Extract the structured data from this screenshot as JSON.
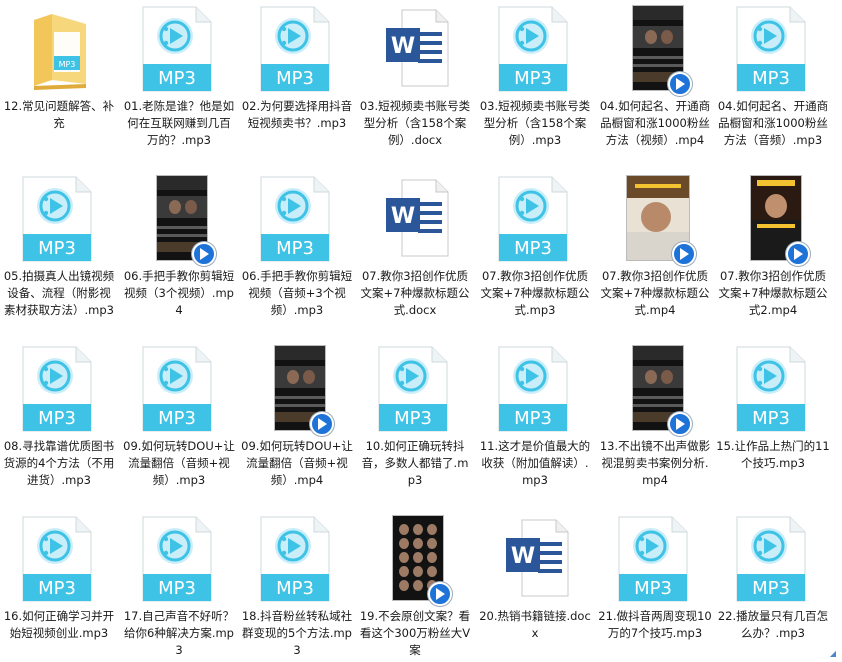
{
  "colors": {
    "mp3_teal": "#3ec3e6",
    "mp3_light": "#c9eef9",
    "docx_blue": "#2b579a",
    "play_blue": "#1e73d8"
  },
  "files": [
    {
      "type": "folder",
      "name": "12.常见问题解答、补充"
    },
    {
      "type": "mp3",
      "name": "01.老陈是谁？他是如何在互联网赚到几百万的？.mp3"
    },
    {
      "type": "mp3",
      "name": "02.为何要选择用抖音短视频卖书？.mp3"
    },
    {
      "type": "docx",
      "name": "03.短视频卖书账号类型分析（含158个案例）.docx"
    },
    {
      "type": "mp3",
      "name": "03.短视频卖书账号类型分析（含158个案例）.mp3"
    },
    {
      "type": "mp4",
      "name": "04.如何起名、开通商品橱窗和涨1000粉丝方法（视频）.mp4",
      "thumb": "dark"
    },
    {
      "type": "mp3",
      "name": "04.如何起名、开通商品橱窗和涨1000粉丝方法（音频）.mp3"
    },
    {
      "type": "mp3",
      "name": "05.拍摄真人出镜视频设备、流程（附影视素材获取方法）.mp3"
    },
    {
      "type": "mp4",
      "name": "06.手把手教你剪辑短视频（3个视频）.mp4",
      "thumb": "dark"
    },
    {
      "type": "mp3",
      "name": "06.手把手教你剪辑短视频（音频+3个视频）.mp3"
    },
    {
      "type": "docx",
      "name": "07.教你3招创作优质文案+7种爆款标题公式.docx"
    },
    {
      "type": "mp3",
      "name": "07.教你3招创作优质文案+7种爆款标题公式.mp3"
    },
    {
      "type": "mp4",
      "name": "07.教你3招创作优质文案+7种爆款标题公式.mp4",
      "thumb": "man"
    },
    {
      "type": "mp4",
      "name": "07.教你3招创作优质文案+7种爆款标题公式2.mp4",
      "thumb": "man2"
    },
    {
      "type": "mp3",
      "name": "08.寻找靠谱优质图书货源的4个方法（不用进货）.mp3"
    },
    {
      "type": "mp3",
      "name": "09.如何玩转DOU+让流量翻倍（音频+视频）.mp3"
    },
    {
      "type": "mp4",
      "name": "09.如何玩转DOU+让流量翻倍（音频+视频）.mp4",
      "thumb": "dark"
    },
    {
      "type": "mp3",
      "name": "10.如何正确玩转抖音，多数人都错了.mp3"
    },
    {
      "type": "mp3",
      "name": "11.这才是价值最大的收获（附加值解读）.mp3"
    },
    {
      "type": "mp4",
      "name": "13.不出镜不出声做影视混剪卖书案例分析.mp4",
      "thumb": "dark"
    },
    {
      "type": "mp3",
      "name": "15.让作品上热门的11个技巧.mp3"
    },
    {
      "type": "mp3",
      "name": "16.如何正确学习并开始短视频创业.mp3"
    },
    {
      "type": "mp3",
      "name": "17.自己声音不好听？给你6种解决方案.mp3"
    },
    {
      "type": "mp3",
      "name": "18.抖音粉丝转私域社群变现的5个方法.mp3"
    },
    {
      "type": "mp4",
      "name": "19.不会原创文案？看看这个300万粉丝大V案",
      "thumb": "faces"
    },
    {
      "type": "docx",
      "name": "20.热销书籍链接.docx"
    },
    {
      "type": "mp3",
      "name": "21.做抖音两周变现10万的7个技巧.mp3"
    },
    {
      "type": "mp3",
      "name": "22.播放量只有几百怎么办？.mp3"
    }
  ],
  "labels": {
    "mp3": "MP3"
  }
}
